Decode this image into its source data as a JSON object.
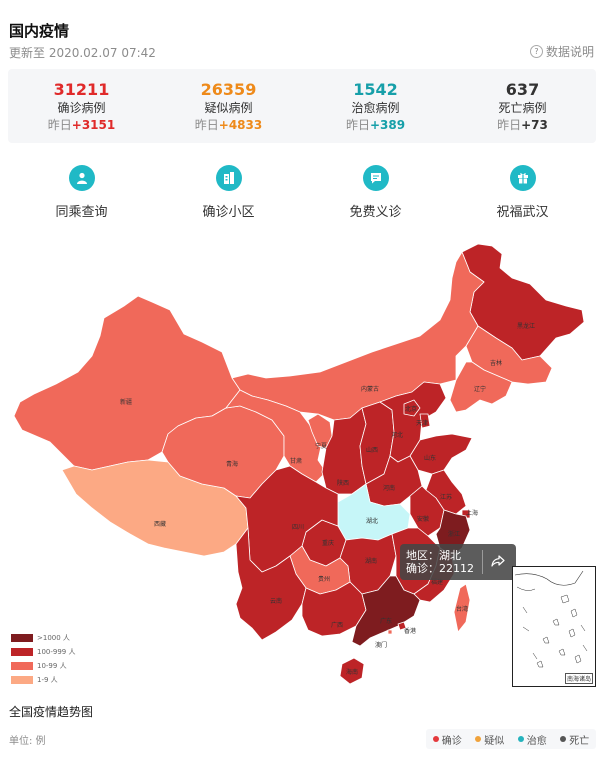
{
  "header": {
    "title": "国内疫情",
    "updated": "更新至 2020.02.07 07:42",
    "explain_label": "数据说明"
  },
  "stats": [
    {
      "value": "31211",
      "label": "确诊病例",
      "delta_prefix": "昨日",
      "delta": "+3151",
      "color": "#e02a2a"
    },
    {
      "value": "26359",
      "label": "疑似病例",
      "delta_prefix": "昨日",
      "delta": "+4833",
      "color": "#ee8a1a"
    },
    {
      "value": "1542",
      "label": "治愈病例",
      "delta_prefix": "昨日",
      "delta": "+389",
      "color": "#169fa9"
    },
    {
      "value": "637",
      "label": "死亡病例",
      "delta_prefix": "昨日",
      "delta": "+73",
      "color": "#333333"
    }
  ],
  "actions": [
    {
      "label": "同乘查询",
      "icon": "person-icon"
    },
    {
      "label": "确诊小区",
      "icon": "building-icon"
    },
    {
      "label": "免费义诊",
      "icon": "chat-icon"
    },
    {
      "label": "祝福武汉",
      "icon": "gift-icon"
    }
  ],
  "map": {
    "provinces": [
      "黑龙江",
      "吉林",
      "辽宁",
      "内蒙古",
      "新疆",
      "西藏",
      "青海",
      "甘肃",
      "宁夏",
      "陕西",
      "山西",
      "北京",
      "天津",
      "河北",
      "山东",
      "河南",
      "江苏",
      "安徽",
      "湖北",
      "四川",
      "重庆",
      "湖南",
      "贵州",
      "云南",
      "广西",
      "广东",
      "江西",
      "福建",
      "浙江",
      "上海",
      "香港",
      "澳门",
      "台湾",
      "海南"
    ],
    "tooltip": {
      "region_label": "地区：湖北",
      "count_label": "确诊：22112"
    },
    "inset_caption": "南海诸岛",
    "legend": [
      {
        "label": ">1000 人",
        "color": "#7e1c1f"
      },
      {
        "label": "100-999 人",
        "color": "#bd2427"
      },
      {
        "label": "10-99 人",
        "color": "#f0695a"
      },
      {
        "label": "1-9 人",
        "color": "#fca984"
      }
    ],
    "colors": {
      "highlight": "#c6f6f8",
      "border": "#ffffff"
    }
  },
  "trend": {
    "title": "全国疫情趋势图",
    "unit": "单位: 例",
    "legend": [
      {
        "label": "确诊",
        "color": "#e4393c"
      },
      {
        "label": "疑似",
        "color": "#f0a23b"
      },
      {
        "label": "治愈",
        "color": "#25b3bd"
      },
      {
        "label": "死亡",
        "color": "#555555"
      }
    ]
  }
}
